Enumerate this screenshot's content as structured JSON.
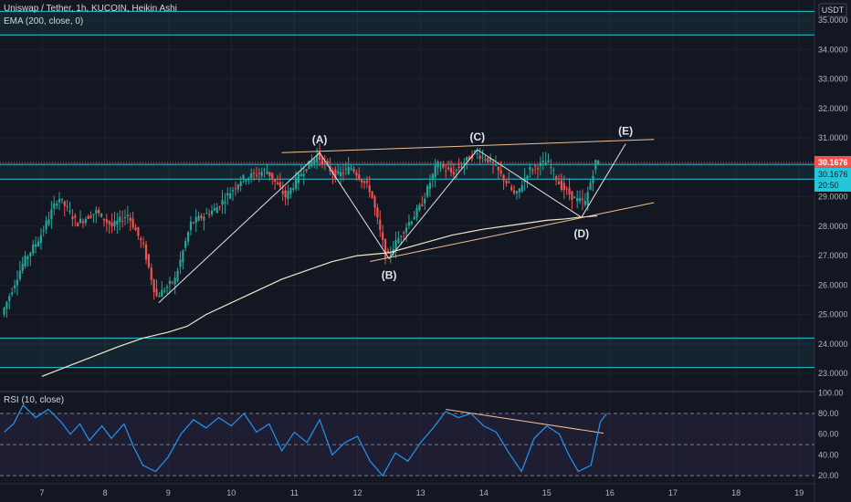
{
  "legend": {
    "title": "Uniswap / Tether, 1h, KUCOIN, Heikin Ashi",
    "ema": "EMA (200, close, 0)",
    "rsi": "RSI (10, close)"
  },
  "currency_label": "USDT",
  "last_price": "30.1676",
  "price_tag": {
    "price": "30.1676",
    "countdown": "20:50"
  },
  "colors": {
    "background": "#131722",
    "up": "#26a69a",
    "down": "#ef5350",
    "grid": "#1e222d",
    "zone": "#26c6da",
    "trendline": "#f0c090",
    "wave_line": "#e0e3eb",
    "ema": "#f5e6c8",
    "rsi": "#2196f3",
    "price_tag": "#ef5350"
  },
  "wave_labels": [
    {
      "label": "(A)"
    },
    {
      "label": "(B)"
    },
    {
      "label": "(C)"
    },
    {
      "label": "(D)"
    },
    {
      "label": "(E)"
    }
  ],
  "chart_data": {
    "type": "candlestick",
    "style": "Heikin Ashi",
    "x_ticks": [
      "7",
      "8",
      "9",
      "10",
      "11",
      "12",
      "13",
      "14",
      "15",
      "16",
      "17",
      "18",
      "19"
    ],
    "price_axis": {
      "ticks": [
        "35.0000",
        "34.0000",
        "33.0000",
        "32.0000",
        "31.0000",
        "29.0000",
        "28.0000",
        "27.0000",
        "26.0000",
        "25.0000",
        "24.0000",
        "23.0000"
      ],
      "range": [
        22.6,
        35.4
      ]
    },
    "rsi_axis": {
      "ticks": [
        "100.00",
        "80.00",
        "60.00",
        "40.00",
        "20.00"
      ],
      "range": [
        14,
        102
      ],
      "levels": [
        80,
        50,
        20
      ]
    },
    "zones": [
      [
        34.5,
        35.3
      ],
      [
        29.6,
        30.1
      ],
      [
        23.2,
        24.2
      ]
    ],
    "wave_points": [
      {
        "label": "(A)",
        "day": 11.4,
        "price": 30.5
      },
      {
        "label": "(B)",
        "day": 12.5,
        "price": 26.9
      },
      {
        "label": "(C)",
        "day": 13.9,
        "price": 30.6
      },
      {
        "label": "(D)",
        "day": 15.55,
        "price": 28.3
      },
      {
        "label": "(E)",
        "day": 16.25,
        "price": 30.8
      }
    ],
    "wave_start": {
      "day": 8.85,
      "price": 25.4
    },
    "upper_trendline": [
      [
        10.8,
        30.5
      ],
      [
        16.7,
        30.95
      ]
    ],
    "lower_trendline": [
      [
        12.2,
        26.8
      ],
      [
        16.7,
        28.8
      ]
    ],
    "rsi_trendline": [
      [
        13.4,
        84
      ],
      [
        15.9,
        61
      ]
    ],
    "ema_path": [
      [
        7.0,
        22.9
      ],
      [
        7.6,
        23.4
      ],
      [
        8.2,
        23.9
      ],
      [
        8.6,
        24.2
      ],
      [
        9.0,
        24.4
      ],
      [
        9.3,
        24.6
      ],
      [
        9.6,
        25.0
      ],
      [
        10.0,
        25.4
      ],
      [
        10.4,
        25.8
      ],
      [
        10.8,
        26.2
      ],
      [
        11.2,
        26.5
      ],
      [
        11.6,
        26.8
      ],
      [
        12.0,
        27.0
      ],
      [
        12.5,
        27.1
      ],
      [
        13.0,
        27.4
      ],
      [
        13.5,
        27.7
      ],
      [
        14.0,
        27.9
      ],
      [
        14.5,
        28.05
      ],
      [
        15.0,
        28.2
      ],
      [
        15.3,
        28.25
      ],
      [
        15.5,
        28.3
      ],
      [
        15.8,
        28.35
      ]
    ],
    "price_path": [
      [
        6.4,
        25.0
      ],
      [
        6.75,
        26.8
      ],
      [
        7.0,
        27.6
      ],
      [
        7.3,
        29.0
      ],
      [
        7.6,
        28.1
      ],
      [
        7.9,
        28.5
      ],
      [
        8.15,
        28.0
      ],
      [
        8.4,
        28.4
      ],
      [
        8.65,
        27.3
      ],
      [
        8.85,
        25.6
      ],
      [
        9.15,
        26.2
      ],
      [
        9.4,
        28.1
      ],
      [
        9.8,
        28.6
      ],
      [
        10.2,
        29.6
      ],
      [
        10.6,
        29.9
      ],
      [
        10.9,
        29.0
      ],
      [
        11.15,
        29.8
      ],
      [
        11.4,
        30.4
      ],
      [
        11.7,
        29.7
      ],
      [
        11.95,
        30.0
      ],
      [
        12.25,
        29.2
      ],
      [
        12.5,
        26.9
      ],
      [
        12.75,
        27.8
      ],
      [
        13.05,
        28.7
      ],
      [
        13.3,
        30.1
      ],
      [
        13.55,
        29.8
      ],
      [
        13.9,
        30.5
      ],
      [
        14.15,
        30.2
      ],
      [
        14.4,
        29.5
      ],
      [
        14.55,
        29.0
      ],
      [
        14.75,
        29.9
      ],
      [
        15.05,
        30.2
      ],
      [
        15.25,
        29.4
      ],
      [
        15.5,
        28.9
      ],
      [
        15.65,
        28.8
      ],
      [
        15.82,
        30.2
      ]
    ],
    "rsi_path": [
      [
        6.4,
        62
      ],
      [
        6.55,
        70
      ],
      [
        6.7,
        88
      ],
      [
        6.9,
        76
      ],
      [
        7.1,
        84
      ],
      [
        7.3,
        72
      ],
      [
        7.45,
        60
      ],
      [
        7.6,
        70
      ],
      [
        7.75,
        54
      ],
      [
        7.95,
        68
      ],
      [
        8.1,
        56
      ],
      [
        8.3,
        70
      ],
      [
        8.45,
        48
      ],
      [
        8.6,
        30
      ],
      [
        8.8,
        24
      ],
      [
        9.0,
        38
      ],
      [
        9.2,
        60
      ],
      [
        9.4,
        74
      ],
      [
        9.6,
        66
      ],
      [
        9.8,
        76
      ],
      [
        10.0,
        68
      ],
      [
        10.2,
        80
      ],
      [
        10.4,
        62
      ],
      [
        10.6,
        70
      ],
      [
        10.8,
        44
      ],
      [
        11.0,
        62
      ],
      [
        11.2,
        52
      ],
      [
        11.4,
        74
      ],
      [
        11.6,
        40
      ],
      [
        11.8,
        52
      ],
      [
        12.0,
        58
      ],
      [
        12.2,
        34
      ],
      [
        12.4,
        20
      ],
      [
        12.6,
        42
      ],
      [
        12.8,
        34
      ],
      [
        13.0,
        52
      ],
      [
        13.2,
        66
      ],
      [
        13.4,
        82
      ],
      [
        13.6,
        76
      ],
      [
        13.8,
        80
      ],
      [
        14.0,
        68
      ],
      [
        14.2,
        62
      ],
      [
        14.4,
        42
      ],
      [
        14.6,
        24
      ],
      [
        14.8,
        56
      ],
      [
        15.0,
        68
      ],
      [
        15.2,
        60
      ],
      [
        15.35,
        40
      ],
      [
        15.5,
        24
      ],
      [
        15.7,
        30
      ],
      [
        15.85,
        72
      ],
      [
        15.95,
        80
      ]
    ]
  }
}
